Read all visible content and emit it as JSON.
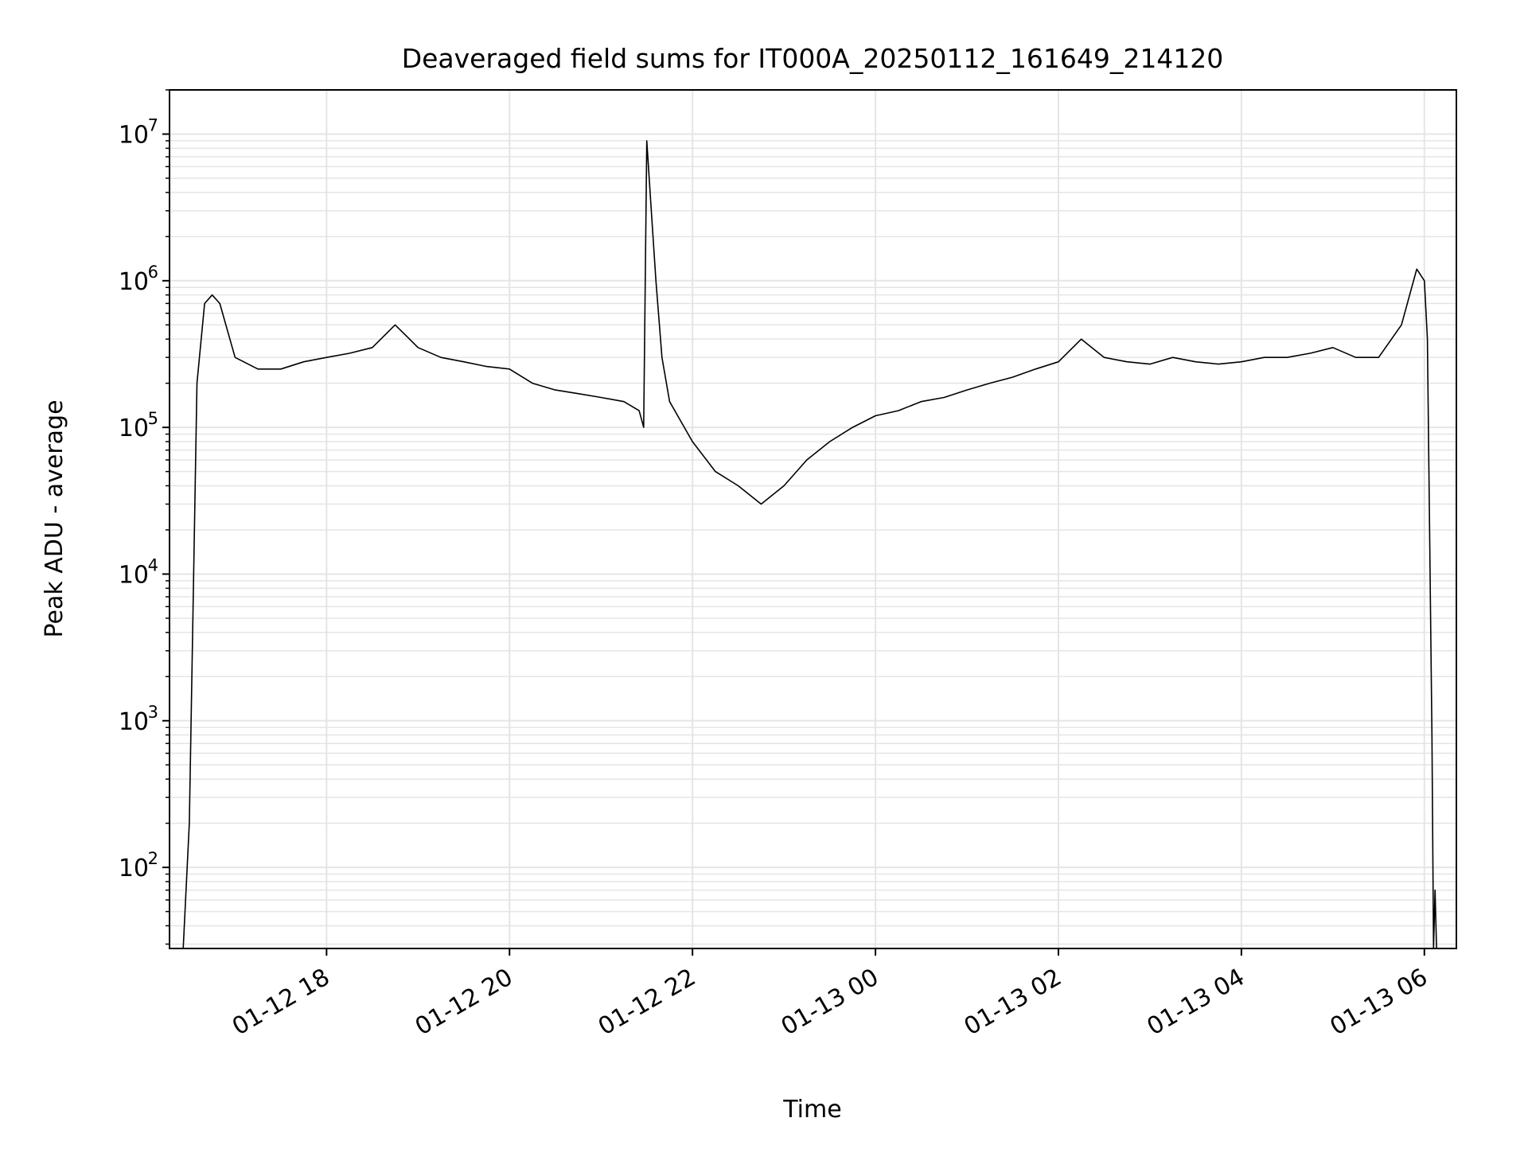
{
  "chart_data": {
    "type": "line",
    "title": "Deaveraged field sums for IT000A_20250112_161649_214120",
    "xlabel": "Time",
    "ylabel": "Peak ADU - average",
    "yscale": "log",
    "ylim": [
      28,
      20000000.0
    ],
    "xlim": [
      "2025-01-12 16:17",
      "2025-01-13 06:21"
    ],
    "grid": true,
    "legend": "none",
    "line_color": "#000000",
    "grid_color": "#e5e5e5",
    "x_tick_labels": [
      "01-12 18",
      "01-12 20",
      "01-12 22",
      "01-13 00",
      "01-13 02",
      "01-13 04",
      "01-13 06"
    ],
    "x_tick_values": [
      "2025-01-12 18:00",
      "2025-01-12 20:00",
      "2025-01-12 22:00",
      "2025-01-13 00:00",
      "2025-01-13 02:00",
      "2025-01-13 04:00",
      "2025-01-13 06:00"
    ],
    "y_tick_values": [
      100,
      1000,
      10000,
      100000,
      1000000,
      10000000
    ],
    "y_tick_labels": [
      {
        "base": "10",
        "exp": "2"
      },
      {
        "base": "10",
        "exp": "3"
      },
      {
        "base": "10",
        "exp": "4"
      },
      {
        "base": "10",
        "exp": "5"
      },
      {
        "base": "10",
        "exp": "6"
      },
      {
        "base": "10",
        "exp": "7"
      }
    ],
    "series": [
      {
        "x": [
          "2025-01-12 16:26",
          "2025-01-12 16:30",
          "2025-01-12 16:35",
          "2025-01-12 16:40",
          "2025-01-12 16:45",
          "2025-01-12 16:50",
          "2025-01-12 17:00",
          "2025-01-12 17:15",
          "2025-01-12 17:30",
          "2025-01-12 17:45",
          "2025-01-12 18:00",
          "2025-01-12 18:15",
          "2025-01-12 18:30",
          "2025-01-12 18:45",
          "2025-01-12 19:00",
          "2025-01-12 19:15",
          "2025-01-12 19:30",
          "2025-01-12 19:45",
          "2025-01-12 20:00",
          "2025-01-12 20:15",
          "2025-01-12 20:30",
          "2025-01-12 20:45",
          "2025-01-12 21:00",
          "2025-01-12 21:15",
          "2025-01-12 21:25",
          "2025-01-12 21:28",
          "2025-01-12 21:30",
          "2025-01-12 21:33",
          "2025-01-12 21:36",
          "2025-01-12 21:40",
          "2025-01-12 21:45",
          "2025-01-12 22:00",
          "2025-01-12 22:15",
          "2025-01-12 22:30",
          "2025-01-12 22:45",
          "2025-01-12 23:00",
          "2025-01-12 23:15",
          "2025-01-12 23:30",
          "2025-01-12 23:45",
          "2025-01-13 00:00",
          "2025-01-13 00:15",
          "2025-01-13 00:30",
          "2025-01-13 00:45",
          "2025-01-13 01:00",
          "2025-01-13 01:15",
          "2025-01-13 01:30",
          "2025-01-13 01:45",
          "2025-01-13 02:00",
          "2025-01-13 02:15",
          "2025-01-13 02:30",
          "2025-01-13 02:45",
          "2025-01-13 03:00",
          "2025-01-13 03:15",
          "2025-01-13 03:30",
          "2025-01-13 03:45",
          "2025-01-13 04:00",
          "2025-01-13 04:15",
          "2025-01-13 04:30",
          "2025-01-13 04:45",
          "2025-01-13 05:00",
          "2025-01-13 05:15",
          "2025-01-13 05:30",
          "2025-01-13 05:45",
          "2025-01-13 05:55",
          "2025-01-13 06:00",
          "2025-01-13 06:02",
          "2025-01-13 06:05",
          "2025-01-13 06:06",
          "2025-01-13 06:07",
          "2025-01-13 06:08"
        ],
        "y": [
          28,
          200,
          200000,
          700000,
          800000,
          700000,
          300000,
          250000,
          250000,
          280000,
          300000,
          320000,
          350000,
          500000,
          350000,
          300000,
          280000,
          260000,
          250000,
          200000,
          180000,
          170000,
          160000,
          150000,
          130000,
          100000,
          9000000,
          3000000,
          1000000,
          300000,
          150000,
          80000,
          50000,
          40000,
          30000,
          40000,
          60000,
          80000,
          100000,
          120000,
          130000,
          150000,
          160000,
          180000,
          200000,
          220000,
          250000,
          280000,
          400000,
          300000,
          280000,
          270000,
          300000,
          280000,
          270000,
          280000,
          300000,
          300000,
          320000,
          350000,
          300000,
          300000,
          500000,
          1200000,
          1000000,
          400000,
          800,
          28,
          70,
          28
        ]
      }
    ]
  }
}
